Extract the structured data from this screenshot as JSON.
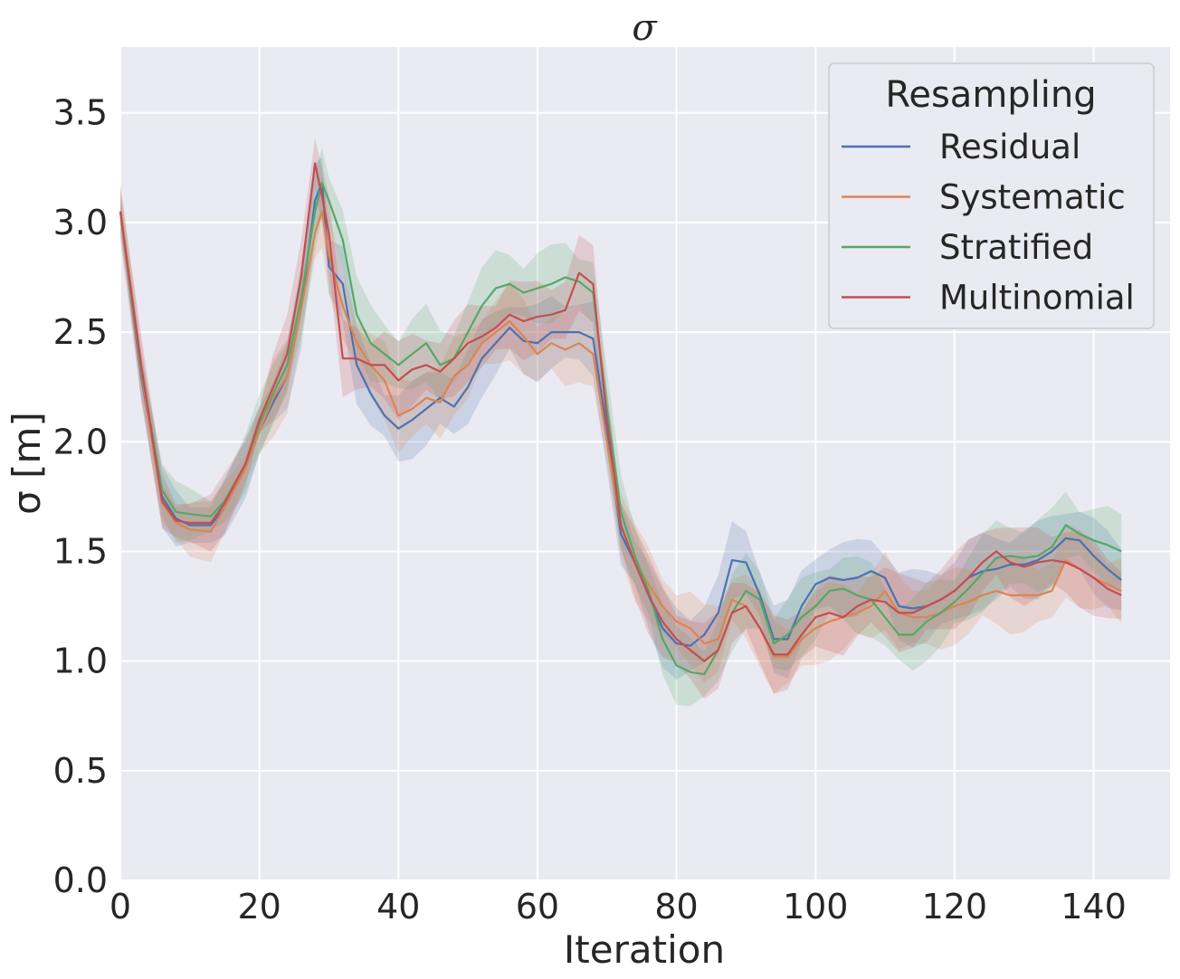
{
  "chart_data": {
    "type": "line",
    "title": "σ",
    "xlabel": "Iteration",
    "ylabel": "σ [m]",
    "xlim": [
      0,
      151
    ],
    "ylim": [
      0,
      3.8
    ],
    "xticks": [
      0,
      20,
      40,
      60,
      80,
      100,
      120,
      140
    ],
    "xtick_labels": [
      "0",
      "20",
      "40",
      "60",
      "80",
      "100",
      "120",
      "140"
    ],
    "yticks": [
      0,
      0.5,
      1.0,
      1.5,
      2.0,
      2.5,
      3.0,
      3.5
    ],
    "ytick_labels": [
      "0.0",
      "0.5",
      "1.0",
      "1.5",
      "2.0",
      "2.5",
      "3.0",
      "3.5"
    ],
    "grid": true,
    "legend": {
      "title": "Resampling",
      "placement": "top-right"
    },
    "x": [
      0,
      3,
      6,
      8,
      10,
      13,
      15,
      18,
      20,
      22,
      24,
      26,
      28,
      29,
      30,
      32,
      34,
      36,
      38,
      40,
      42,
      44,
      46,
      48,
      50,
      52,
      54,
      56,
      58,
      60,
      62,
      64,
      66,
      68,
      70,
      72,
      74,
      76,
      78,
      80,
      82,
      84,
      86,
      88,
      90,
      92,
      94,
      96,
      98,
      100,
      102,
      104,
      106,
      108,
      110,
      112,
      114,
      116,
      118,
      120,
      122,
      124,
      126,
      128,
      130,
      132,
      134,
      136,
      138,
      140,
      142,
      144
    ],
    "series": [
      {
        "name": "Residual",
        "color": "#4c72b0",
        "values": [
          3.05,
          2.3,
          1.75,
          1.65,
          1.62,
          1.62,
          1.7,
          1.88,
          2.05,
          2.18,
          2.3,
          2.6,
          3.1,
          3.18,
          2.8,
          2.72,
          2.35,
          2.22,
          2.12,
          2.06,
          2.1,
          2.15,
          2.2,
          2.16,
          2.25,
          2.38,
          2.45,
          2.52,
          2.46,
          2.45,
          2.5,
          2.5,
          2.5,
          2.47,
          2.05,
          1.58,
          1.45,
          1.3,
          1.15,
          1.08,
          1.07,
          1.12,
          1.22,
          1.46,
          1.45,
          1.3,
          1.1,
          1.1,
          1.25,
          1.35,
          1.38,
          1.37,
          1.38,
          1.41,
          1.38,
          1.25,
          1.24,
          1.25,
          1.28,
          1.32,
          1.38,
          1.41,
          1.42,
          1.44,
          1.44,
          1.46,
          1.5,
          1.56,
          1.55,
          1.48,
          1.42,
          1.37
        ]
      },
      {
        "name": "Systematic",
        "color": "#dd8452",
        "values": [
          3.05,
          2.32,
          1.72,
          1.63,
          1.6,
          1.59,
          1.7,
          1.88,
          2.05,
          2.2,
          2.3,
          2.6,
          2.95,
          3.05,
          2.85,
          2.62,
          2.45,
          2.35,
          2.28,
          2.12,
          2.15,
          2.2,
          2.18,
          2.3,
          2.35,
          2.45,
          2.5,
          2.55,
          2.48,
          2.4,
          2.45,
          2.42,
          2.45,
          2.4,
          2.0,
          1.62,
          1.45,
          1.35,
          1.25,
          1.18,
          1.15,
          1.08,
          1.1,
          1.28,
          1.25,
          1.15,
          1.02,
          1.02,
          1.1,
          1.15,
          1.18,
          1.2,
          1.22,
          1.25,
          1.32,
          1.22,
          1.2,
          1.2,
          1.22,
          1.25,
          1.27,
          1.3,
          1.32,
          1.3,
          1.3,
          1.3,
          1.32,
          1.46,
          1.42,
          1.38,
          1.35,
          1.32
        ]
      },
      {
        "name": "Stratified",
        "color": "#55a868",
        "values": [
          3.05,
          2.33,
          1.78,
          1.68,
          1.67,
          1.66,
          1.73,
          1.9,
          2.08,
          2.22,
          2.35,
          2.65,
          3.05,
          3.18,
          3.1,
          2.92,
          2.58,
          2.45,
          2.4,
          2.35,
          2.4,
          2.45,
          2.35,
          2.38,
          2.5,
          2.62,
          2.7,
          2.72,
          2.68,
          2.7,
          2.72,
          2.75,
          2.73,
          2.68,
          2.15,
          1.68,
          1.48,
          1.32,
          1.1,
          0.98,
          0.95,
          0.94,
          1.05,
          1.22,
          1.32,
          1.28,
          1.08,
          1.12,
          1.2,
          1.25,
          1.32,
          1.33,
          1.3,
          1.28,
          1.2,
          1.12,
          1.12,
          1.18,
          1.22,
          1.27,
          1.33,
          1.4,
          1.47,
          1.48,
          1.47,
          1.48,
          1.52,
          1.62,
          1.58,
          1.55,
          1.53,
          1.5
        ]
      },
      {
        "name": "Multinomial",
        "color": "#c44e52",
        "values": [
          3.05,
          2.35,
          1.73,
          1.64,
          1.63,
          1.63,
          1.72,
          1.9,
          2.1,
          2.25,
          2.4,
          2.75,
          3.27,
          3.12,
          2.95,
          2.38,
          2.38,
          2.35,
          2.35,
          2.28,
          2.33,
          2.35,
          2.32,
          2.38,
          2.45,
          2.48,
          2.52,
          2.58,
          2.55,
          2.57,
          2.58,
          2.6,
          2.77,
          2.72,
          2.1,
          1.62,
          1.45,
          1.3,
          1.18,
          1.1,
          1.05,
          1.0,
          1.05,
          1.22,
          1.25,
          1.15,
          1.03,
          1.03,
          1.12,
          1.2,
          1.22,
          1.2,
          1.25,
          1.28,
          1.27,
          1.22,
          1.22,
          1.25,
          1.28,
          1.32,
          1.38,
          1.45,
          1.5,
          1.45,
          1.43,
          1.45,
          1.46,
          1.45,
          1.42,
          1.38,
          1.33,
          1.3
        ]
      }
    ]
  }
}
